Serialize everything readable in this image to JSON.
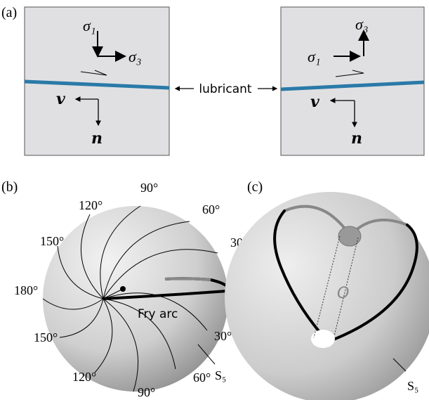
{
  "panel_a": {
    "label": "(a)",
    "left": {
      "sigma_top": "σ₁",
      "sigma_side": "σ₃",
      "v": "v",
      "n": "n"
    },
    "right": {
      "sigma_top": "σ₃",
      "sigma_side": "σ₁",
      "v": "v",
      "n": "n"
    },
    "lubricant": "lubricant"
  },
  "panel_b": {
    "label": "(b)",
    "angles": [
      "90°",
      "120°",
      "60°",
      "150°",
      "30°",
      "180°",
      "30°",
      "150°",
      "60°",
      "120°",
      "90°"
    ],
    "arc_label": "Fry arc",
    "surface": "S₅"
  },
  "panel_c": {
    "label": "(c)",
    "origin": "O",
    "surface": "S₅"
  }
}
